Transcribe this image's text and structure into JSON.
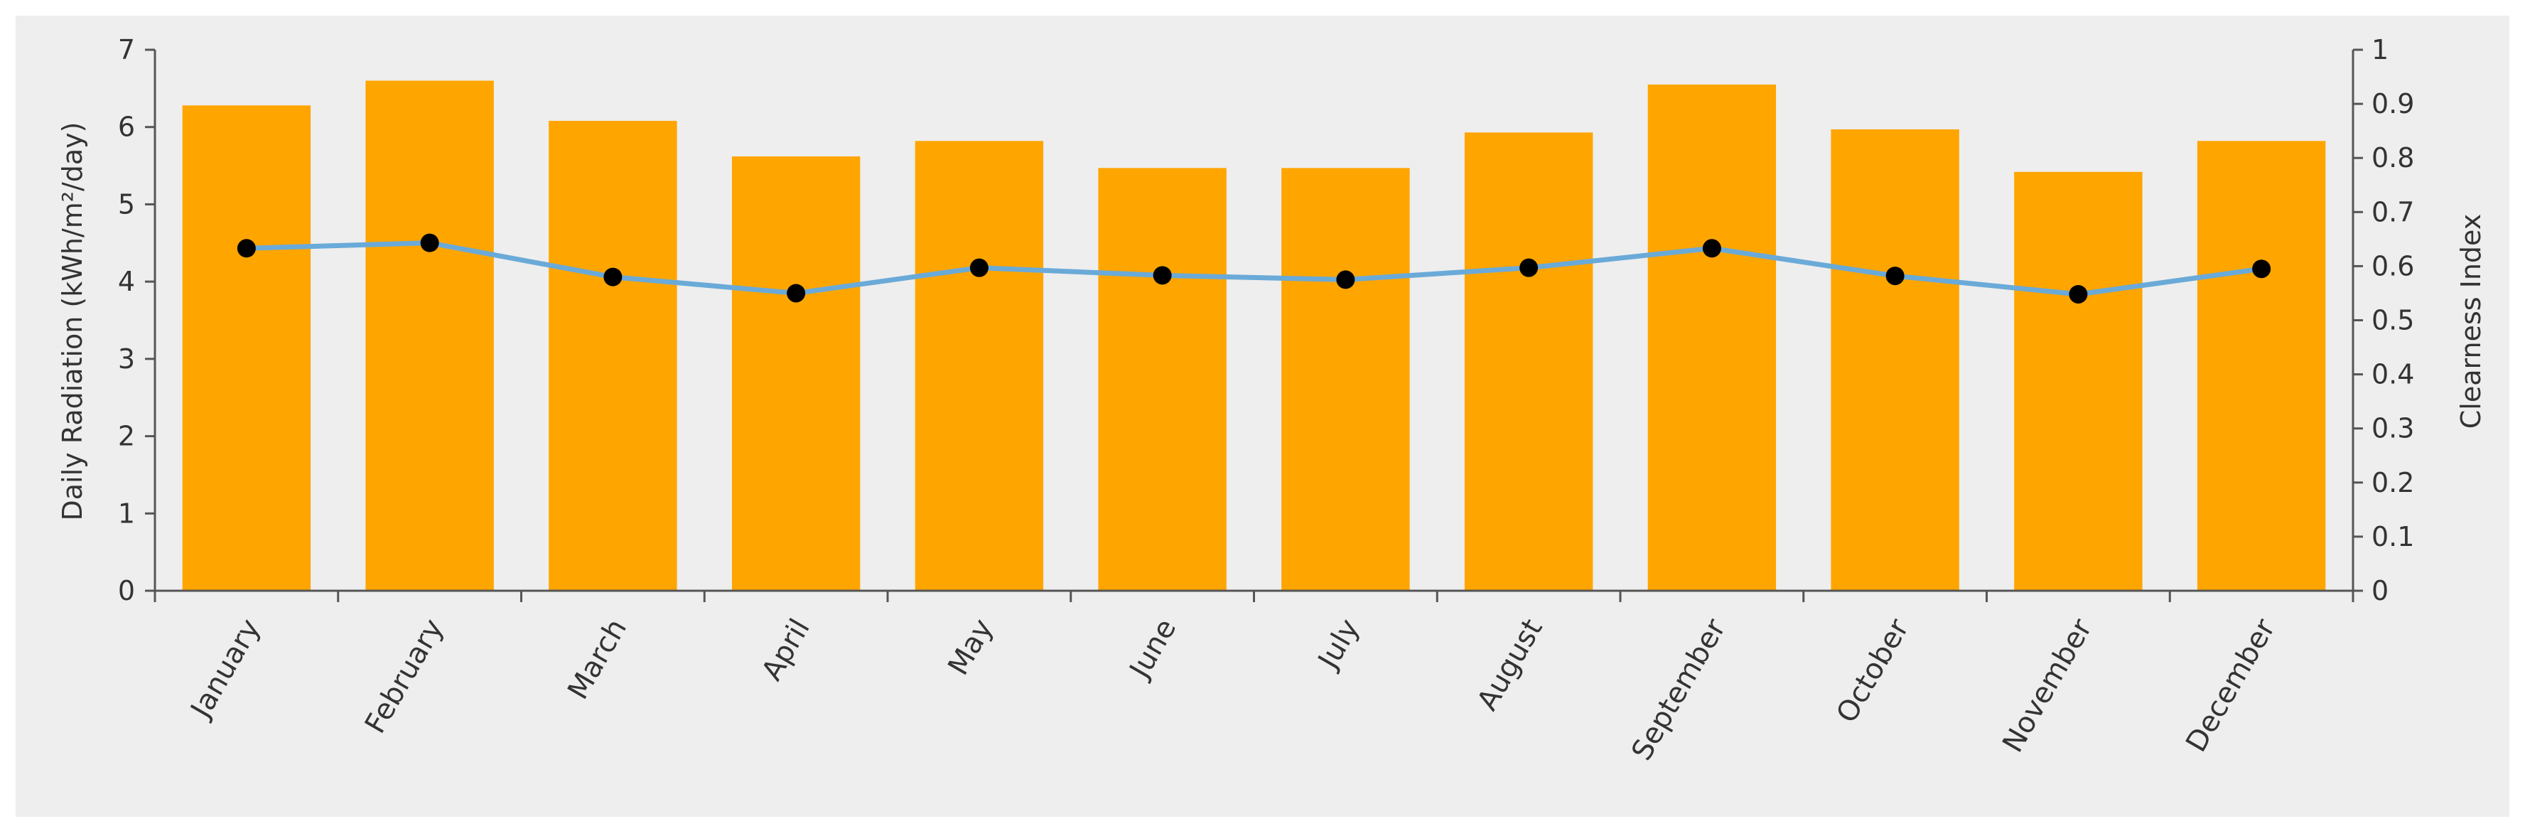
{
  "chart_data": {
    "type": "bar+line",
    "title": "",
    "categories": [
      "January",
      "February",
      "March",
      "April",
      "May",
      "June",
      "July",
      "August",
      "September",
      "October",
      "November",
      "December"
    ],
    "series": [
      {
        "name": "Daily Radiation",
        "type": "bar",
        "axis": "left",
        "values": [
          6.28,
          6.6,
          6.08,
          5.62,
          5.82,
          5.47,
          5.47,
          5.93,
          6.55,
          5.97,
          5.42,
          5.82
        ]
      },
      {
        "name": "Clearness Index",
        "type": "line",
        "axis": "right",
        "values": [
          0.633,
          0.643,
          0.58,
          0.55,
          0.597,
          0.583,
          0.575,
          0.597,
          0.633,
          0.582,
          0.548,
          0.595
        ]
      }
    ],
    "ylabel": "Daily Radiation (kWh/m²/day)",
    "y2label": "Clearness Index",
    "ylim": [
      0,
      7
    ],
    "y2lim": [
      0,
      1
    ],
    "yticks": [
      "0",
      "1",
      "2",
      "3",
      "4",
      "5",
      "6",
      "7"
    ],
    "y2ticks": [
      "0",
      "0.1",
      "0.2",
      "0.3",
      "0.4",
      "0.5",
      "0.6",
      "0.7",
      "0.8",
      "0.9",
      "1"
    ],
    "grid": false,
    "legend": "none",
    "colors": {
      "bar": "#FFA500",
      "line": "#6AAAD8",
      "marker": "#000000",
      "background": "#EEEEEE",
      "axis": "#555555"
    }
  }
}
